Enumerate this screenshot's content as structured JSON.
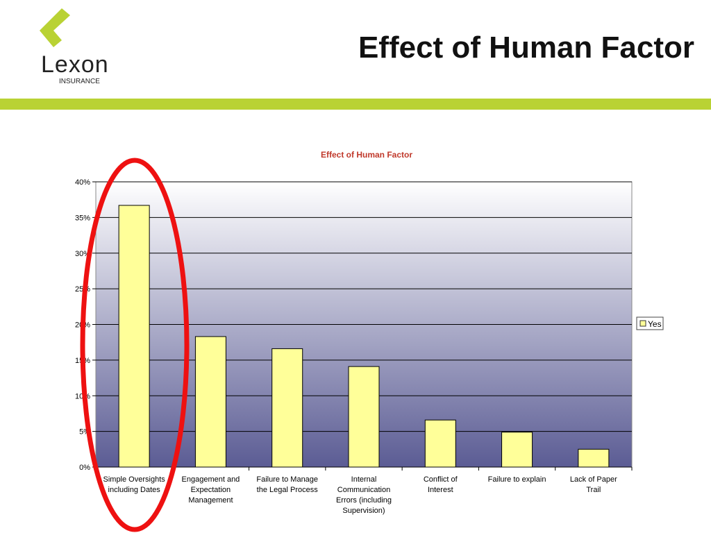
{
  "header": {
    "title": "Effect of Human Factor",
    "logo": {
      "name": "Lexon",
      "tagline": "INSURANCE"
    }
  },
  "colors": {
    "accent": "#b9d234",
    "bar_fill": "#ffff99",
    "chart_title": "#c0392b",
    "highlight": "#ee1111"
  },
  "chart_data": {
    "type": "bar",
    "title": "Effect of Human Factor",
    "categories": [
      "Simple Oversights including Dates",
      "Engagement and Expectation Management",
      "Failure to Manage the Legal Process",
      "Internal Communication Errors (including Supervision)",
      "Conflict of Interest",
      "Failure to explain",
      "Lack of Paper Trail"
    ],
    "series": [
      {
        "name": "Yes",
        "values": [
          36.7,
          18.3,
          16.6,
          14.1,
          6.6,
          4.9,
          2.5
        ]
      }
    ],
    "y_ticks": [
      "0%",
      "5%",
      "10%",
      "15%",
      "20%",
      "25%",
      "30%",
      "35%",
      "40%"
    ],
    "ylim": [
      0,
      40
    ],
    "y_format": "percent",
    "grid": true,
    "legend": "right",
    "xlabel": "",
    "ylabel": ""
  }
}
